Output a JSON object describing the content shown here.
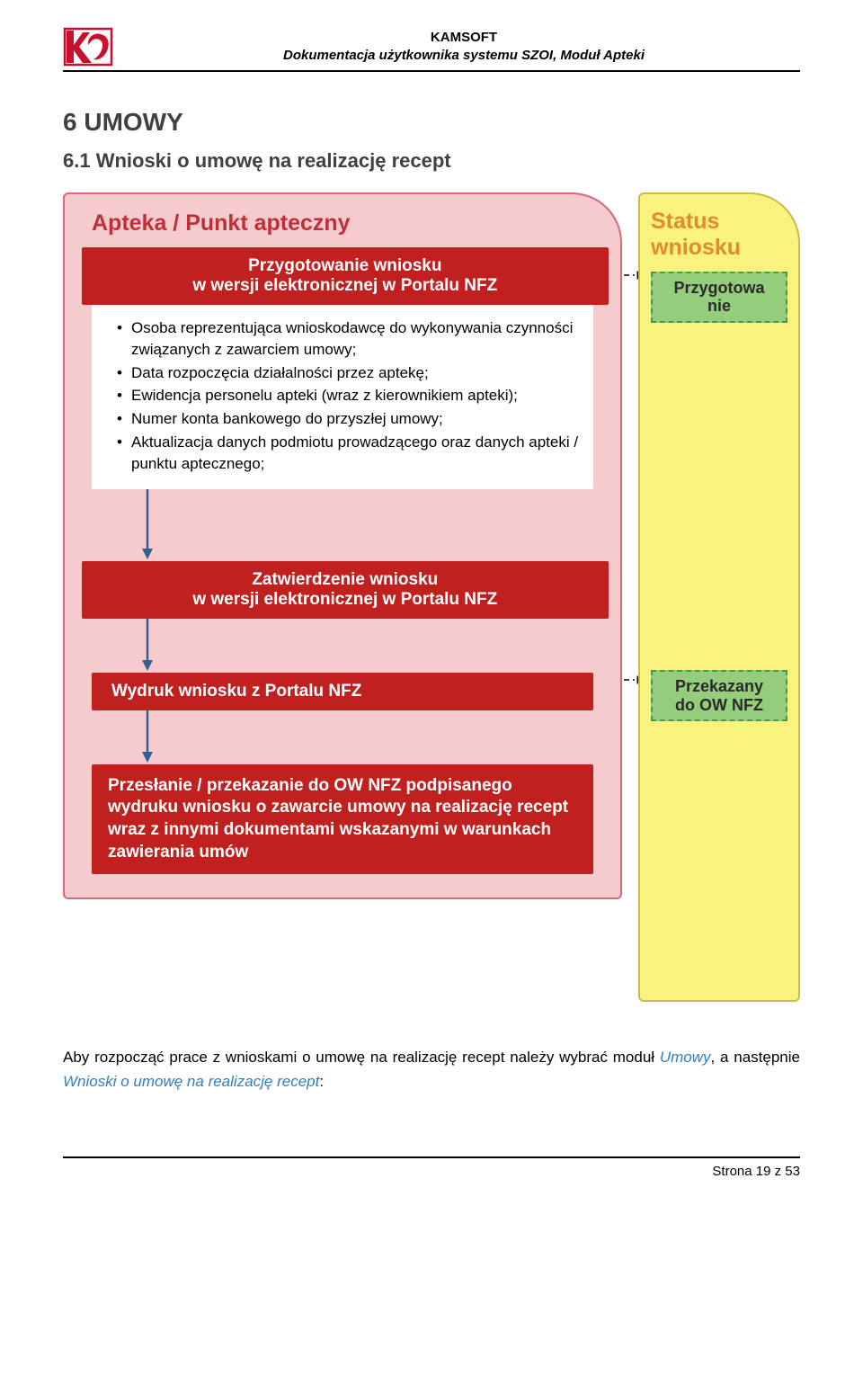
{
  "header": {
    "company": "KAMSOFT",
    "subtitle": "Dokumentacja użytkownika systemu SZOI, Moduł Apteki",
    "logo": {
      "stroke": "#c8102e",
      "fill": "#c8102e"
    }
  },
  "section": {
    "number_title": "6  UMOWY",
    "subsection": "6.1 Wnioski o umowę na realizację recept"
  },
  "diagram": {
    "left": {
      "title": "Apteka / Punkt apteczny",
      "title_color": "#be2f3a",
      "bg": "#f6cbcd",
      "border": "#d6687a",
      "box1": {
        "line1": "Przygotowanie wniosku",
        "line2": "w wersji elektronicznej w Portalu NFZ",
        "bg": "#c0201e"
      },
      "bullets": [
        "Osoba reprezentująca wnioskodawcę do wykonywania czynności związanych z zawarciem umowy;",
        "Data rozpoczęcia działalności przez aptekę;",
        "Ewidencja personelu apteki (wraz z kierownikiem apteki);",
        "Numer konta bankowego do przyszłej umowy;",
        "Aktualizacja danych podmiotu prowadzącego oraz danych apteki / punktu aptecznego;"
      ],
      "box2": {
        "line1": "Zatwierdzenie wniosku",
        "line2": "w wersji elektronicznej w Portalu NFZ"
      },
      "box3": {
        "line1": "Wydruk wniosku z Portalu NFZ"
      },
      "box4": {
        "line1": "Przesłanie / przekazanie do OW NFZ podpisanego wydruku wniosku o zawarcie umowy na realizację recept wraz z innymi dokumentami wskazanymi w warunkach zawierania umów"
      }
    },
    "right": {
      "title_l1": "Status",
      "title_l2": "wniosku",
      "title_color": "#e38b2a",
      "bg": "#f9f27e",
      "border": "#c9bb4a",
      "status1": {
        "l1": "Przygotowa",
        "l2": "nie",
        "bg": "#94ce7c",
        "border": "#4a9a4a"
      },
      "status2": {
        "l1": "Przekazany",
        "l2": "do OW NFZ"
      }
    },
    "arrow_color": "#345f91",
    "connector_color": "#000000"
  },
  "bodytext": {
    "pre": "Aby rozpocząć prace z wnioskami o umowę na realizację recept należy wybrać moduł ",
    "em1": "Umowy",
    "mid": ", a następnie ",
    "em2": "Wnioski o umowę na realizację recept",
    "post": ":"
  },
  "footer": {
    "text": "Strona 19 z 53"
  }
}
